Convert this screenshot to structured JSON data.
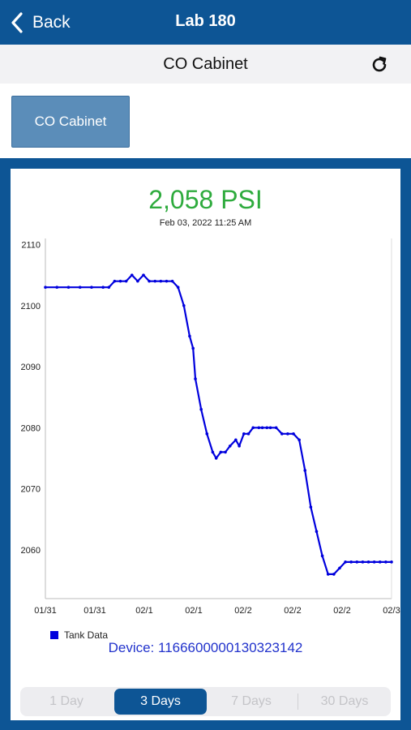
{
  "nav": {
    "back_label": "Back",
    "title": "Lab 180"
  },
  "subheader": {
    "title": "CO Cabinet",
    "refresh_icon": "refresh-icon"
  },
  "cabinet_button": {
    "label": "CO Cabinet"
  },
  "reading": {
    "value": "2,058 PSI",
    "timestamp": "Feb 03, 2022 11:25 AM",
    "color": "#2eab3d"
  },
  "chart_data": {
    "type": "line",
    "series": [
      {
        "name": "Tank Data",
        "color": "#0000dd",
        "x": [
          0,
          0.1,
          0.2,
          0.3,
          0.4,
          0.5,
          0.55,
          0.6,
          0.65,
          0.7,
          0.75,
          0.8,
          0.85,
          0.9,
          0.95,
          1.0,
          1.05,
          1.1,
          1.15,
          1.2,
          1.25,
          1.28,
          1.3,
          1.35,
          1.4,
          1.45,
          1.48,
          1.52,
          1.56,
          1.6,
          1.65,
          1.68,
          1.72,
          1.76,
          1.8,
          1.85,
          1.88,
          1.92,
          1.95,
          2.0,
          2.05,
          2.1,
          2.15,
          2.2,
          2.25,
          2.3,
          2.35,
          2.4,
          2.45,
          2.5,
          2.55,
          2.6,
          2.65,
          2.7,
          2.75,
          2.8,
          2.85,
          2.9,
          2.95,
          3.0
        ],
        "y": [
          2103,
          2103,
          2103,
          2103,
          2103,
          2103,
          2103,
          2104,
          2104,
          2104,
          2105,
          2104,
          2105,
          2104,
          2104,
          2104,
          2104,
          2104,
          2103,
          2100,
          2095,
          2093,
          2088,
          2083,
          2079,
          2076,
          2075,
          2076,
          2076,
          2077,
          2078,
          2077,
          2079,
          2079,
          2080,
          2080,
          2080,
          2080,
          2080,
          2080,
          2079,
          2079,
          2079,
          2078,
          2073,
          2067,
          2063,
          2059,
          2056,
          2056,
          2057,
          2058,
          2058,
          2058,
          2058,
          2058,
          2058,
          2058,
          2058,
          2058
        ]
      }
    ],
    "x_tick_labels": [
      "01/31",
      "01/31",
      "02/1",
      "02/1",
      "02/2",
      "02/2",
      "02/2",
      "02/3"
    ],
    "y_ticks": [
      2060,
      2070,
      2080,
      2090,
      2100,
      2110
    ],
    "ylim": [
      2052,
      2111
    ],
    "xlim": [
      0,
      3.0
    ],
    "grid": false,
    "legend": "bottom-left"
  },
  "legend": {
    "label": "Tank Data",
    "color": "#0000dd"
  },
  "device": {
    "label": "Device: 116660000013032314​2"
  },
  "range_tabs": {
    "items": [
      "1 Day",
      "3 Days",
      "7 Days",
      "30 Days"
    ],
    "selected": "3 Days"
  }
}
